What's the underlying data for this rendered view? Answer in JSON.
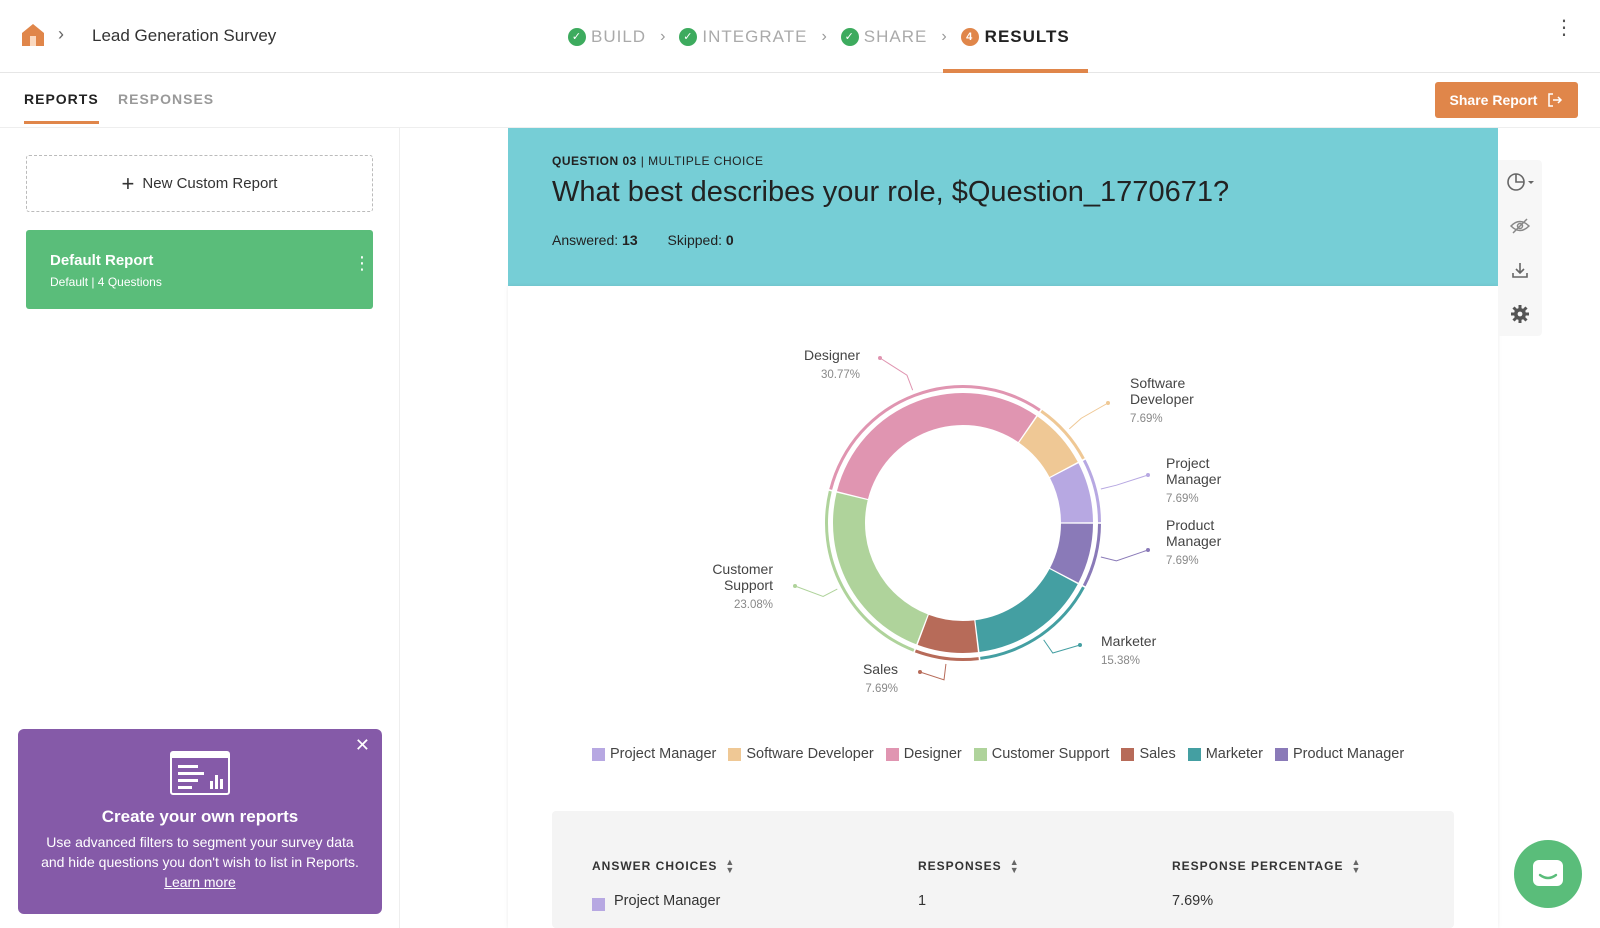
{
  "header": {
    "survey_title": "Lead Generation Survey",
    "steps": [
      {
        "label": "BUILD",
        "state": "done"
      },
      {
        "label": "INTEGRATE",
        "state": "done"
      },
      {
        "label": "SHARE",
        "state": "done"
      },
      {
        "label": "RESULTS",
        "state": "active",
        "number": "4"
      }
    ]
  },
  "subnav": {
    "tabs": [
      "REPORTS",
      "RESPONSES"
    ],
    "share_label": "Share Report"
  },
  "sidebar": {
    "new_report_label": "New Custom Report",
    "report": {
      "name": "Default Report",
      "meta": "Default  |  4 Questions"
    },
    "promo": {
      "title": "Create your own reports",
      "desc": "Use advanced filters to segment your survey data and hide questions you don't wish to list in Reports.",
      "link": "Learn more"
    }
  },
  "question": {
    "number": "QUESTION 03",
    "type": "MULTIPLE CHOICE",
    "title": "What best describes your role, $Question_1770671?",
    "answered_label": "Answered:",
    "answered": "13",
    "skipped_label": "Skipped:",
    "skipped": "0"
  },
  "chart_data": {
    "type": "pie",
    "categories": [
      "Project Manager",
      "Product Manager",
      "Marketer",
      "Sales",
      "Customer Support",
      "Designer",
      "Software Developer"
    ],
    "values": [
      7.69,
      7.69,
      15.38,
      7.69,
      23.08,
      30.77,
      7.69
    ],
    "labels": [
      "7.69%",
      "7.69%",
      "15.38%",
      "7.69%",
      "23.08%",
      "30.77%",
      "7.69%"
    ],
    "colors": [
      "#b7a8e2",
      "#8a7ab8",
      "#449fa2",
      "#b76b59",
      "#afd39b",
      "#e095b1",
      "#efc895"
    ],
    "legend": [
      "Project Manager",
      "Software Developer",
      "Designer",
      "Customer Support",
      "Sales",
      "Marketer",
      "Product Manager"
    ],
    "legend_colors": [
      "#b7a8e2",
      "#efc895",
      "#e095b1",
      "#afd39b",
      "#b76b59",
      "#449fa2",
      "#8a7ab8"
    ],
    "legend_placement": "bottom"
  },
  "table": {
    "headers": [
      "ANSWER CHOICES",
      "RESPONSES",
      "RESPONSE PERCENTAGE"
    ],
    "rows": [
      {
        "choice": "Project Manager",
        "responses": "1",
        "percentage": "7.69%",
        "color": "#b7a8e2"
      }
    ]
  }
}
